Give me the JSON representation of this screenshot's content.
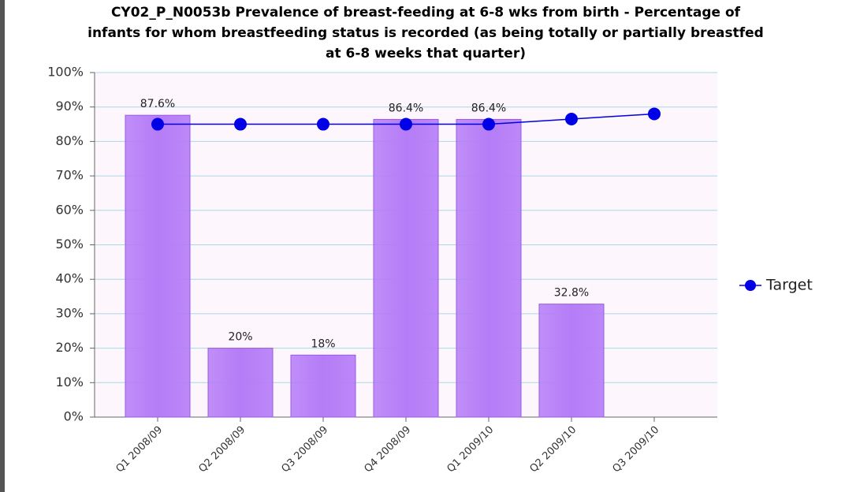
{
  "chart_data": {
    "type": "bar",
    "title": [
      "CY02_P_N0053b Prevalence of breast-feeding at 6-8 wks from birth - Percentage of",
      "infants for whom breastfeeding status is recorded (as being totally or partially breastfed",
      "at 6-8 weeks that quarter)"
    ],
    "categories": [
      "Q1 2008/09",
      "Q2 2008/09",
      "Q3 2008/09",
      "Q4 2008/09",
      "Q1 2009/10",
      "Q2 2009/10",
      "Q3 2009/10"
    ],
    "series": [
      {
        "type": "bar",
        "color": "#b57cf7",
        "values": [
          87.6,
          20,
          18,
          86.4,
          86.4,
          32.8,
          null
        ],
        "value_labels": [
          "87.6%",
          "20%",
          "18%",
          "86.4%",
          "86.4%",
          "32.8%",
          null
        ]
      },
      {
        "type": "line",
        "name": "Target",
        "color": "#0000e6",
        "values": [
          85,
          85,
          85,
          85,
          85,
          86.5,
          88
        ]
      }
    ],
    "ylim": [
      0,
      100
    ],
    "yticks": [
      {
        "value": 0,
        "label": "0%"
      },
      {
        "value": 10,
        "label": "10%"
      },
      {
        "value": 20,
        "label": "20%"
      },
      {
        "value": 30,
        "label": "30%"
      },
      {
        "value": 40,
        "label": "40%"
      },
      {
        "value": 50,
        "label": "50%"
      },
      {
        "value": 60,
        "label": "60%"
      },
      {
        "value": 70,
        "label": "70%"
      },
      {
        "value": 80,
        "label": "80%"
      },
      {
        "value": 90,
        "label": "90%"
      },
      {
        "value": 100,
        "label": "100%"
      }
    ],
    "grid": true,
    "legend": "right"
  }
}
